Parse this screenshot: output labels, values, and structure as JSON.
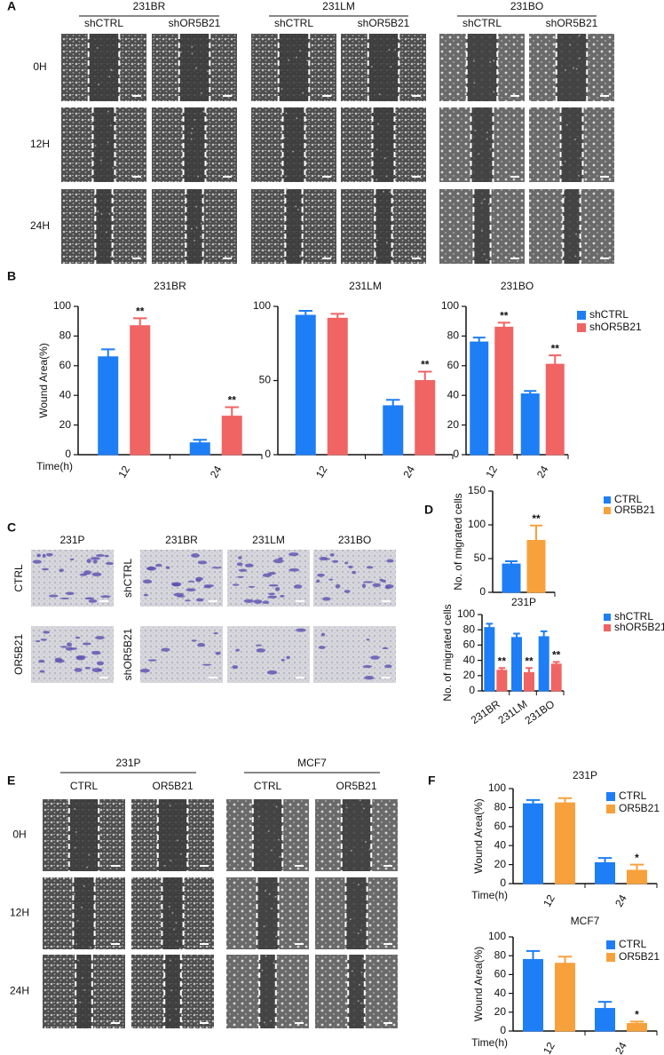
{
  "panel_letters": [
    "A",
    "B",
    "C",
    "D",
    "E",
    "F"
  ],
  "panel_A": {
    "groups": [
      {
        "label": "231BR",
        "columns": [
          "shCTRL",
          "shOR5B21"
        ]
      },
      {
        "label": "231LM",
        "columns": [
          "shCTRL",
          "shOR5B21"
        ]
      },
      {
        "label": "231BO",
        "columns": [
          "shCTRL",
          "shOR5B21"
        ]
      }
    ],
    "rows": [
      "0H",
      "12H",
      "24H"
    ]
  },
  "panel_C": {
    "columns": [
      "231P",
      "231BR",
      "231LM",
      "231BO"
    ],
    "rows_left": [
      "CTRL",
      "OR5B21"
    ],
    "rows_right": [
      "shCTRL",
      "shOR5B21"
    ]
  },
  "panel_E": {
    "groups": [
      {
        "label": "231P",
        "columns": [
          "CTRL",
          "OR5B21"
        ]
      },
      {
        "label": "MCF7",
        "columns": [
          "CTRL",
          "OR5B21"
        ]
      }
    ],
    "rows": [
      "0H",
      "12H",
      "24H"
    ]
  },
  "chart_data": [
    {
      "type": "bar",
      "title": "231BR",
      "ylabel": "Wound Area(%)",
      "xlabel": "Time(h)",
      "categories": [
        "12",
        "24"
      ],
      "series": [
        {
          "color": "#1e7ef5",
          "values": [
            66,
            8
          ],
          "errors": [
            5,
            2
          ],
          "significance": [
            null,
            null
          ]
        },
        {
          "color": "#f06464",
          "values": [
            87,
            26
          ],
          "errors": [
            5,
            6
          ],
          "significance": [
            "**",
            "**"
          ]
        }
      ],
      "ylim": [
        0,
        100
      ],
      "yticks": [
        0,
        20,
        40,
        60,
        80,
        100
      ]
    },
    {
      "type": "bar",
      "title": "231LM",
      "categories": [
        "12",
        "24"
      ],
      "series": [
        {
          "color": "#1e7ef5",
          "values": [
            94,
            33
          ],
          "errors": [
            3,
            4
          ],
          "significance": [
            null,
            null
          ]
        },
        {
          "color": "#f06464",
          "values": [
            92,
            50
          ],
          "errors": [
            3,
            6
          ],
          "significance": [
            null,
            "**"
          ]
        }
      ],
      "ylim": [
        0,
        100
      ],
      "yticks": [
        0,
        50,
        100
      ]
    },
    {
      "type": "bar",
      "title": "231BO",
      "categories": [
        "12",
        "24"
      ],
      "series": [
        {
          "name": "shCTRL",
          "color": "#1e7ef5",
          "values": [
            76,
            41
          ],
          "errors": [
            3,
            2
          ],
          "significance": [
            null,
            null
          ]
        },
        {
          "name": "shOR5B21",
          "color": "#f06464",
          "values": [
            86,
            61
          ],
          "errors": [
            3,
            6
          ],
          "significance": [
            "**",
            "**"
          ]
        }
      ],
      "ylim": [
        0,
        100
      ],
      "yticks": [
        0,
        20,
        40,
        60,
        80,
        100
      ]
    },
    {
      "type": "bar",
      "ylabel": "No. of migrated cells",
      "categories": [
        "231P"
      ],
      "series": [
        {
          "name": "CTRL",
          "color": "#1e7ef5",
          "values": [
            42
          ],
          "errors": [
            4
          ],
          "significance": [
            null
          ]
        },
        {
          "name": "OR5B21",
          "color": "#f7a13c",
          "values": [
            77
          ],
          "errors": [
            22
          ],
          "significance": [
            "**"
          ]
        }
      ],
      "ylim": [
        0,
        150
      ],
      "yticks": [
        0,
        50,
        100,
        150
      ]
    },
    {
      "type": "bar",
      "ylabel": "No. of migrated cells",
      "categories": [
        "231BR",
        "231LM",
        "231BO"
      ],
      "series": [
        {
          "name": "shCTRL",
          "color": "#1e7ef5",
          "values": [
            83,
            70,
            71
          ],
          "errors": [
            5,
            5,
            7
          ],
          "significance": [
            null,
            null,
            null
          ]
        },
        {
          "name": "shOR5B21",
          "color": "#f06464",
          "values": [
            27,
            24,
            35
          ],
          "errors": [
            3,
            6,
            3
          ],
          "significance": [
            "**",
            "**",
            "**"
          ]
        }
      ],
      "ylim": [
        0,
        100
      ],
      "yticks": [
        0,
        20,
        40,
        60,
        80,
        100
      ]
    },
    {
      "type": "bar",
      "title": "231P",
      "ylabel": "Wound Area(%)",
      "xlabel": "Time(h)",
      "categories": [
        "12",
        "24"
      ],
      "series": [
        {
          "name": "CTRL",
          "color": "#1e7ef5",
          "values": [
            84,
            22
          ],
          "errors": [
            4,
            5
          ],
          "significance": [
            null,
            null
          ]
        },
        {
          "name": "OR5B21",
          "color": "#f7a13c",
          "values": [
            85,
            14
          ],
          "errors": [
            5,
            6
          ],
          "significance": [
            null,
            "*"
          ]
        }
      ],
      "ylim": [
        0,
        100
      ],
      "yticks": [
        0,
        20,
        40,
        60,
        80,
        100
      ]
    },
    {
      "type": "bar",
      "title": "MCF7",
      "ylabel": "Wound Area(%)",
      "xlabel": "Time(h)",
      "categories": [
        "12",
        "24"
      ],
      "series": [
        {
          "name": "CTRL",
          "color": "#1e7ef5",
          "values": [
            76,
            24
          ],
          "errors": [
            9,
            7
          ],
          "significance": [
            null,
            null
          ]
        },
        {
          "name": "OR5B21",
          "color": "#f7a13c",
          "values": [
            72,
            8
          ],
          "errors": [
            7,
            2
          ],
          "significance": [
            null,
            "*"
          ]
        }
      ],
      "ylim": [
        0,
        100
      ],
      "yticks": [
        0,
        20,
        40,
        60,
        80,
        100
      ]
    }
  ]
}
